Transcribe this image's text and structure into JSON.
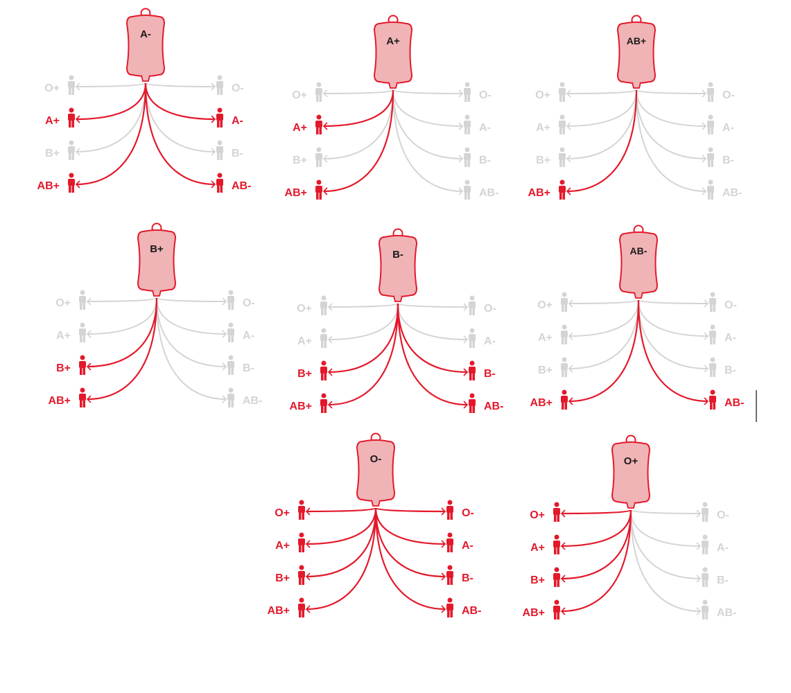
{
  "colors": {
    "compatible": "#e3192b",
    "incompatible": "#d4d4d4",
    "bag_fill": "#f0b4b6",
    "bag_stroke": "#e3192b",
    "bag_label": "#1a1a1a"
  },
  "icons": {
    "bag": "blood-bag-icon",
    "person": "person-icon",
    "arrow": "arrow-curve"
  },
  "donor_diagrams": [
    {
      "bag_label": "A-",
      "left_recipients": [
        {
          "label": "O+",
          "compatible": false
        },
        {
          "label": "A+",
          "compatible": true
        },
        {
          "label": "B+",
          "compatible": false
        },
        {
          "label": "AB+",
          "compatible": true
        }
      ],
      "right_recipients": [
        {
          "label": "O-",
          "compatible": false
        },
        {
          "label": "A-",
          "compatible": true
        },
        {
          "label": "B-",
          "compatible": false
        },
        {
          "label": "AB-",
          "compatible": true
        }
      ]
    },
    {
      "bag_label": "A+",
      "left_recipients": [
        {
          "label": "O+",
          "compatible": false
        },
        {
          "label": "A+",
          "compatible": true
        },
        {
          "label": "B+",
          "compatible": false
        },
        {
          "label": "AB+",
          "compatible": true
        }
      ],
      "right_recipients": [
        {
          "label": "O-",
          "compatible": false
        },
        {
          "label": "A-",
          "compatible": false
        },
        {
          "label": "B-",
          "compatible": false
        },
        {
          "label": "AB-",
          "compatible": false
        }
      ]
    },
    {
      "bag_label": "AB+",
      "left_recipients": [
        {
          "label": "O+",
          "compatible": false
        },
        {
          "label": "A+",
          "compatible": false
        },
        {
          "label": "B+",
          "compatible": false
        },
        {
          "label": "AB+",
          "compatible": true
        }
      ],
      "right_recipients": [
        {
          "label": "O-",
          "compatible": false
        },
        {
          "label": "A-",
          "compatible": false
        },
        {
          "label": "B-",
          "compatible": false
        },
        {
          "label": "AB-",
          "compatible": false
        }
      ]
    },
    {
      "bag_label": "B+",
      "left_recipients": [
        {
          "label": "O+",
          "compatible": false
        },
        {
          "label": "A+",
          "compatible": false
        },
        {
          "label": "B+",
          "compatible": true
        },
        {
          "label": "AB+",
          "compatible": true
        }
      ],
      "right_recipients": [
        {
          "label": "O-",
          "compatible": false
        },
        {
          "label": "A-",
          "compatible": false
        },
        {
          "label": "B-",
          "compatible": false
        },
        {
          "label": "AB-",
          "compatible": false
        }
      ]
    },
    {
      "bag_label": "B-",
      "left_recipients": [
        {
          "label": "O+",
          "compatible": false
        },
        {
          "label": "A+",
          "compatible": false
        },
        {
          "label": "B+",
          "compatible": true
        },
        {
          "label": "AB+",
          "compatible": true
        }
      ],
      "right_recipients": [
        {
          "label": "O-",
          "compatible": false
        },
        {
          "label": "A-",
          "compatible": false
        },
        {
          "label": "B-",
          "compatible": true
        },
        {
          "label": "AB-",
          "compatible": true
        }
      ]
    },
    {
      "bag_label": "AB-",
      "left_recipients": [
        {
          "label": "O+",
          "compatible": false
        },
        {
          "label": "A+",
          "compatible": false
        },
        {
          "label": "B+",
          "compatible": false
        },
        {
          "label": "AB+",
          "compatible": true
        }
      ],
      "right_recipients": [
        {
          "label": "O-",
          "compatible": false
        },
        {
          "label": "A-",
          "compatible": false
        },
        {
          "label": "B-",
          "compatible": false
        },
        {
          "label": "AB-",
          "compatible": true
        }
      ]
    },
    {
      "bag_label": "O-",
      "left_recipients": [
        {
          "label": "O+",
          "compatible": true
        },
        {
          "label": "A+",
          "compatible": true
        },
        {
          "label": "B+",
          "compatible": true
        },
        {
          "label": "AB+",
          "compatible": true
        }
      ],
      "right_recipients": [
        {
          "label": "O-",
          "compatible": true
        },
        {
          "label": "A-",
          "compatible": true
        },
        {
          "label": "B-",
          "compatible": true
        },
        {
          "label": "AB-",
          "compatible": true
        }
      ]
    },
    {
      "bag_label": "O+",
      "left_recipients": [
        {
          "label": "O+",
          "compatible": true
        },
        {
          "label": "A+",
          "compatible": true
        },
        {
          "label": "B+",
          "compatible": true
        },
        {
          "label": "AB+",
          "compatible": true
        }
      ],
      "right_recipients": [
        {
          "label": "O-",
          "compatible": false
        },
        {
          "label": "A-",
          "compatible": false
        },
        {
          "label": "B-",
          "compatible": false
        },
        {
          "label": "AB-",
          "compatible": false
        }
      ]
    }
  ]
}
